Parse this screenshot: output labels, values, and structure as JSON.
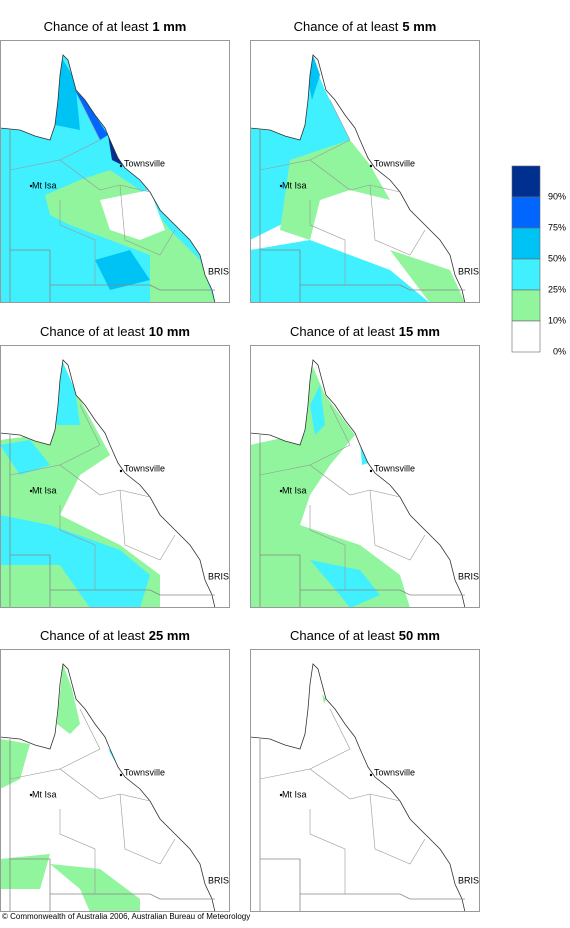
{
  "panels": [
    {
      "title_prefix": "Chance of at least",
      "title_amount": "1 mm"
    },
    {
      "title_prefix": "Chance of at least",
      "title_amount": "5 mm"
    },
    {
      "title_prefix": "Chance of at least",
      "title_amount": "10 mm"
    },
    {
      "title_prefix": "Chance of at least",
      "title_amount": "15 mm"
    },
    {
      "title_prefix": "Chance of at least",
      "title_amount": "25 mm"
    },
    {
      "title_prefix": "Chance of at least",
      "title_amount": "50 mm"
    }
  ],
  "place_labels": {
    "townsville": "Townsville",
    "mt_isa": "Mt Isa",
    "bris": "BRIS"
  },
  "legend": {
    "colors": [
      "#00308f",
      "#0066ff",
      "#00c3f5",
      "#40f0ff",
      "#90f59c",
      "#ffffff"
    ],
    "labels": [
      "90%",
      "75%",
      "50%",
      "25%",
      "10%",
      "0%"
    ]
  },
  "copyright": "© Commonwealth of Australia 2006, Australian Bureau of Meteorology"
}
